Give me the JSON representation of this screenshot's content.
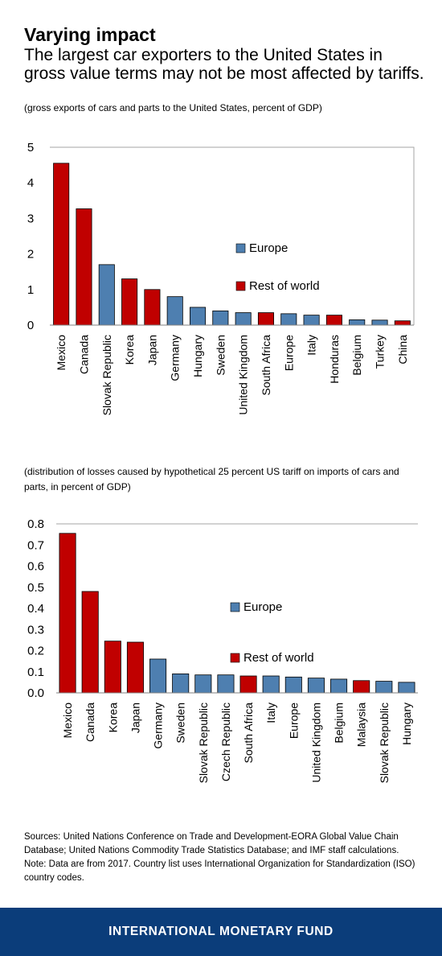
{
  "header": {
    "title": "Varying impact",
    "subtitle": "The largest car exporters to the United States in gross value terms may not be most affected by tariffs."
  },
  "legend": {
    "europe": "Europe",
    "rest": "Rest of world"
  },
  "colors": {
    "europe": "#4e7fb0",
    "rest": "#c00000",
    "footer": "#0b3d7a"
  },
  "chart_data": [
    {
      "type": "bar",
      "note": "(gross exports of cars and parts to the United States, percent of GDP)",
      "categories": [
        "Mexico",
        "Canada",
        "Slovak Republic",
        "Korea",
        "Japan",
        "Germany",
        "Hungary",
        "Sweden",
        "United Kingdom",
        "South Africa",
        "Europe",
        "Italy",
        "Honduras",
        "Belgium",
        "Turkey",
        "China"
      ],
      "values": [
        4.55,
        3.27,
        1.7,
        1.3,
        1.0,
        0.8,
        0.5,
        0.4,
        0.35,
        0.35,
        0.32,
        0.28,
        0.28,
        0.15,
        0.14,
        0.12
      ],
      "groups": [
        "rest",
        "rest",
        "europe",
        "rest",
        "rest",
        "europe",
        "europe",
        "europe",
        "europe",
        "rest",
        "europe",
        "europe",
        "rest",
        "europe",
        "europe",
        "rest"
      ],
      "yticks": [
        "0",
        "1",
        "2",
        "3",
        "4",
        "5"
      ],
      "ylim": [
        0,
        5
      ],
      "legend_placement": "center-right"
    },
    {
      "type": "bar",
      "note": "(distribution of losses caused by hypothetical 25 percent US tariff on imports of cars and parts, in percent of GDP)",
      "categories": [
        "Mexico",
        "Canada",
        "Korea",
        "Japan",
        "Germany",
        "Sweden",
        "Slovak Republic",
        "Czech Republic",
        "South Africa",
        "Italy",
        "Europe",
        "United Kingdom",
        "Belgium",
        "Malaysia",
        "Slovak Republic",
        "Hungary"
      ],
      "values": [
        0.755,
        0.48,
        0.245,
        0.24,
        0.16,
        0.09,
        0.085,
        0.085,
        0.08,
        0.08,
        0.075,
        0.07,
        0.065,
        0.058,
        0.055,
        0.05
      ],
      "groups": [
        "rest",
        "rest",
        "rest",
        "rest",
        "europe",
        "europe",
        "europe",
        "europe",
        "rest",
        "europe",
        "europe",
        "europe",
        "europe",
        "rest",
        "europe",
        "europe"
      ],
      "yticks": [
        "0.0",
        "0.1",
        "0.2",
        "0.3",
        "0.4",
        "0.5",
        "0.6",
        "0.7",
        "0.8"
      ],
      "ylim": [
        0,
        0.8
      ],
      "legend_placement": "center-right"
    }
  ],
  "sources": {
    "line1": "Sources: United Nations Conference on Trade and Development-EORA Global Value Chain Database; United Nations Commodity Trade Statistics Database; and IMF staff calculations.",
    "line2": "Note: Data are from 2017. Country list uses International Organization for Standardization (ISO) country codes."
  },
  "footer": {
    "label": "INTERNATIONAL MONETARY FUND"
  }
}
